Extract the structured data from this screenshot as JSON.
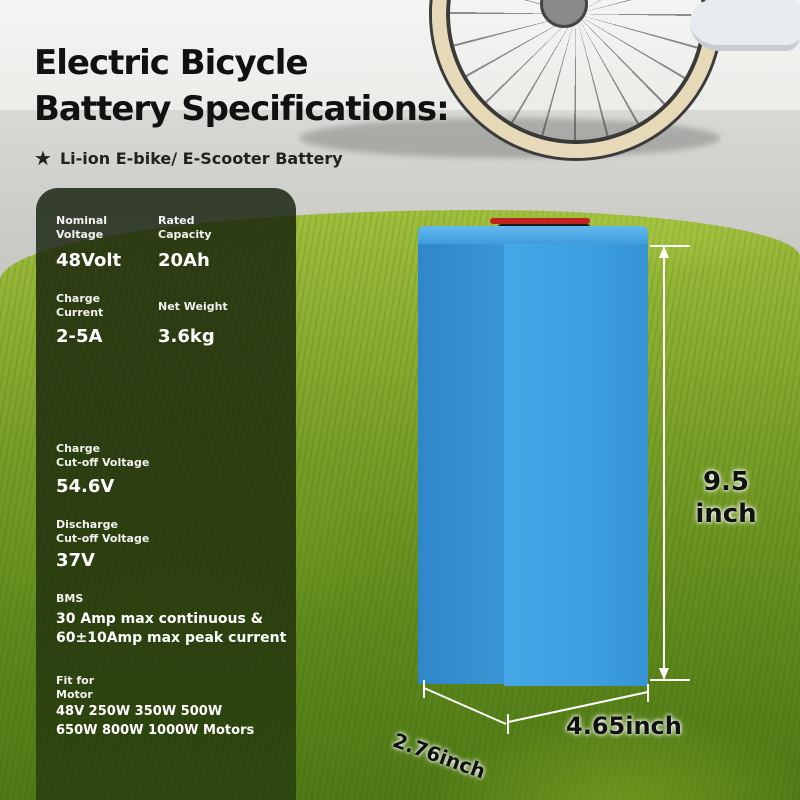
{
  "headline": {
    "line1": "Electric Bicycle",
    "line2": "Battery Specifications:"
  },
  "subtitle": {
    "icon": "star-icon",
    "text": "Li-ion  E-bike/ E-Scooter Battery"
  },
  "specs": {
    "nominal_voltage": {
      "label": "Nominal\nVoltage",
      "value": "48Volt"
    },
    "rated_capacity": {
      "label": "Rated\nCapacity",
      "value": "20Ah"
    },
    "charge_current": {
      "label": "Charge\nCurrent",
      "value": "2-5A"
    },
    "net_weight": {
      "label": "Net Weight",
      "value": "3.6kg"
    },
    "charge_cutoff": {
      "label": "Charge\nCut-off Voltage",
      "value": "54.6V"
    },
    "discharge_cutoff": {
      "label": "Discharge\nCut-off Voltage",
      "value": "37V"
    },
    "bms": {
      "label": "BMS",
      "value": "30 Amp max continuous &\n60±10Amp max peak current"
    },
    "fit_for_motor": {
      "label": "Fit for\nMotor",
      "value": "48V  250W 350W 500W\n650W 800W 1000W Motors"
    }
  },
  "dimensions": {
    "height": "9.5\ninch",
    "width": "4.65inch",
    "depth": "2.76inch"
  },
  "colors": {
    "battery": "#3d9fe0",
    "panel": "#141e0a",
    "grass": "#7ea22a"
  }
}
